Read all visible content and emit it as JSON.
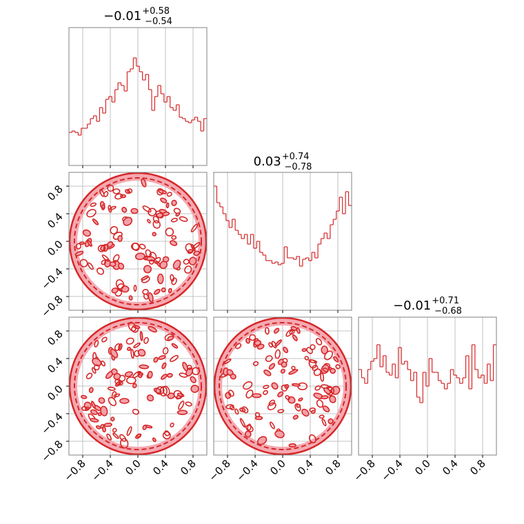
{
  "chart_data": {
    "type": "corner",
    "colors": {
      "line": "#d62728",
      "fill": "#f4a0a8",
      "grid": "#b0b0b0",
      "frame": "#808080"
    },
    "xlim": [
      -1,
      1
    ],
    "ylim": [
      -1,
      1
    ],
    "tick_values": [
      -0.8,
      -0.4,
      0.0,
      0.4,
      0.8
    ],
    "tick_labels": [
      "−0.8",
      "−0.4",
      "0.0",
      "0.4",
      "0.8"
    ],
    "grid": true,
    "titles": [
      {
        "value": "−0.01",
        "plus": "+0.58",
        "minus": "−0.54"
      },
      {
        "value": "0.03",
        "plus": "+0.74",
        "minus": "−0.78"
      },
      {
        "value": "−0.01",
        "plus": "+0.71",
        "minus": "−0.68"
      }
    ],
    "histograms": [
      {
        "name": "param-1",
        "values": [
          0.24,
          0.25,
          0.24,
          0.22,
          0.27,
          0.27,
          0.3,
          0.34,
          0.36,
          0.32,
          0.42,
          0.38,
          0.48,
          0.5,
          0.46,
          0.55,
          0.6,
          0.58,
          0.54,
          0.68,
          0.7,
          0.78,
          0.72,
          0.68,
          0.62,
          0.66,
          0.55,
          0.4,
          0.5,
          0.58,
          0.52,
          0.46,
          0.5,
          0.42,
          0.4,
          0.44,
          0.35,
          0.34,
          0.32,
          0.31,
          0.33,
          0.35,
          0.32,
          0.25,
          0.34
        ]
      },
      {
        "name": "param-2",
        "values": [
          0.9,
          0.78,
          0.75,
          0.7,
          0.65,
          0.6,
          0.66,
          0.58,
          0.55,
          0.52,
          0.55,
          0.48,
          0.55,
          0.45,
          0.5,
          0.42,
          0.4,
          0.36,
          0.36,
          0.34,
          0.35,
          0.33,
          0.34,
          0.46,
          0.38,
          0.38,
          0.37,
          0.39,
          0.32,
          0.37,
          0.38,
          0.36,
          0.42,
          0.38,
          0.48,
          0.52,
          0.56,
          0.52,
          0.62,
          0.66,
          0.72,
          0.82,
          0.7,
          0.86,
          0.76
        ]
      },
      {
        "name": "param-3",
        "values": [
          0.62,
          0.56,
          0.52,
          0.62,
          0.68,
          0.7,
          0.8,
          0.64,
          0.72,
          0.6,
          0.58,
          0.66,
          0.56,
          0.78,
          0.66,
          0.68,
          0.62,
          0.54,
          0.6,
          0.42,
          0.38,
          0.6,
          0.5,
          0.7,
          0.6,
          0.6,
          0.54,
          0.52,
          0.48,
          0.52,
          0.62,
          0.58,
          0.56,
          0.52,
          0.56,
          0.72,
          0.48,
          0.8,
          0.62,
          0.56,
          0.58,
          0.52,
          0.66,
          0.54,
          0.8
        ]
      }
    ],
    "scatter_panels": [
      {
        "name": "param-2-vs-param-1",
        "x_param": 1,
        "y_param": 2,
        "support": "unit-disk"
      },
      {
        "name": "param-3-vs-param-1",
        "x_param": 1,
        "y_param": 3,
        "support": "unit-disk"
      },
      {
        "name": "param-3-vs-param-2",
        "x_param": 2,
        "y_param": 3,
        "support": "unit-disk"
      }
    ]
  }
}
